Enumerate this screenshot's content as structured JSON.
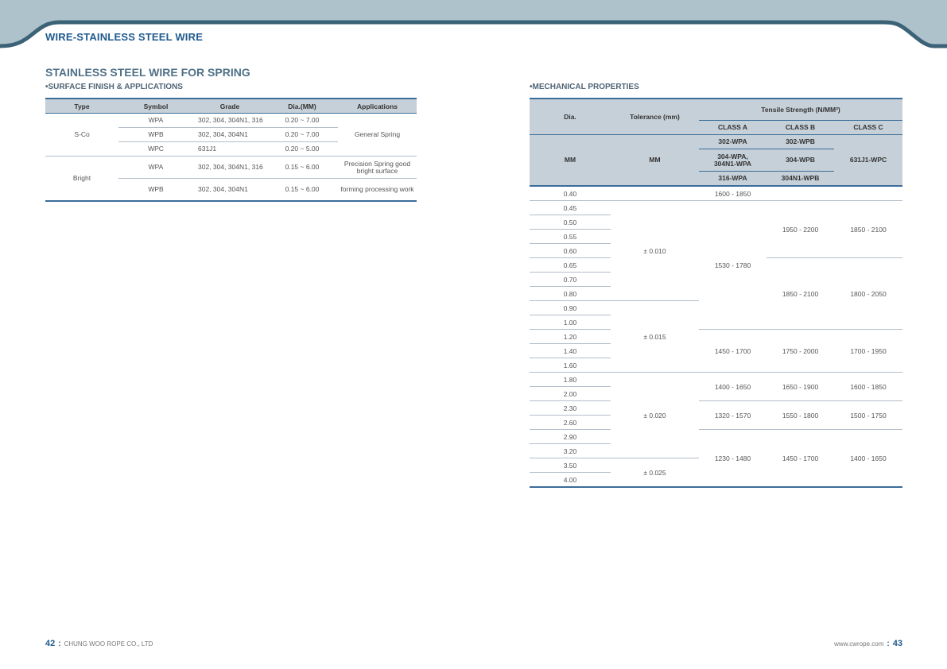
{
  "header": {
    "title": "WIRE-STAINLESS STEEL WIRE"
  },
  "section_title": "STAINLESS STEEL WIRE FOR SPRING",
  "surface": {
    "heading": "•SURFACE FINISH & APPLICATIONS",
    "headers": [
      "Type",
      "Symbol",
      "Grade",
      "Dia.(MM)",
      "Applications"
    ],
    "types": [
      "S-Co",
      "Bright"
    ],
    "rows": [
      {
        "symbol": "WPA",
        "grade": "302, 304, 304N1, 316",
        "dia": "0.20 ~ 7.00"
      },
      {
        "symbol": "WPB",
        "grade": "302, 304, 304N1",
        "dia": "0.20 ~ 7.00"
      },
      {
        "symbol": "WPC",
        "grade": "631J1",
        "dia": "0.20 ~ 5.00"
      },
      {
        "symbol": "WPA",
        "grade": "302, 304, 304N1, 316",
        "dia": "0.15 ~ 6.00"
      },
      {
        "symbol": "WPB",
        "grade": "302, 304, 304N1",
        "dia": "0.15 ~ 6.00"
      }
    ],
    "applications": [
      "General Spring",
      "Precision Spring good bright surface",
      "forming processing work"
    ]
  },
  "mech": {
    "heading": "•MECHANICAL PROPERTIES",
    "h_dia": "Dia.",
    "h_tol": "Tolerance (mm)",
    "h_tensile": "Tensile Strength (N/MM²)",
    "classes": [
      "CLASS A",
      "CLASS B",
      "CLASS C"
    ],
    "unit_mm": "MM",
    "grades": {
      "a1": "302-WPA",
      "b1": "302-WPB",
      "a2": "304-WPA, 304N1-WPA",
      "b2": "304-WPB",
      "c": "631J1-WPC",
      "a3": "316-WPA",
      "b3": "304N1-WPB"
    },
    "dias": [
      "0.40",
      "0.45",
      "0.50",
      "0.55",
      "0.60",
      "0.65",
      "0.70",
      "0.80",
      "0.90",
      "1.00",
      "1.20",
      "1.40",
      "1.60",
      "1.80",
      "2.00",
      "2.30",
      "2.60",
      "2.90",
      "3.20",
      "3.50",
      "4.00"
    ],
    "tolerances": [
      "± 0.010",
      "± 0.015",
      "± 0.020",
      "± 0.025"
    ],
    "class_a": [
      "1600 - 1850",
      "1530 - 1780",
      "1450 - 1700",
      "1400 - 1650",
      "1320 - 1570",
      "1230 - 1480"
    ],
    "class_b": [
      "1950 - 2200",
      "1850 - 2100",
      "1750 - 2000",
      "1650 - 1900",
      "1550 - 1800",
      "1450 - 1700"
    ],
    "class_c": [
      "1850 - 2100",
      "1800 - 2050",
      "1700 - 1950",
      "1600 - 1850",
      "1500 - 1750",
      "1400 - 1650"
    ]
  },
  "footer": {
    "left_page": "42",
    "left_text": "CHUNG WOO ROPE CO., LTD",
    "right_text": "www.cwrope.com",
    "right_page": "43",
    "separator": ":"
  }
}
